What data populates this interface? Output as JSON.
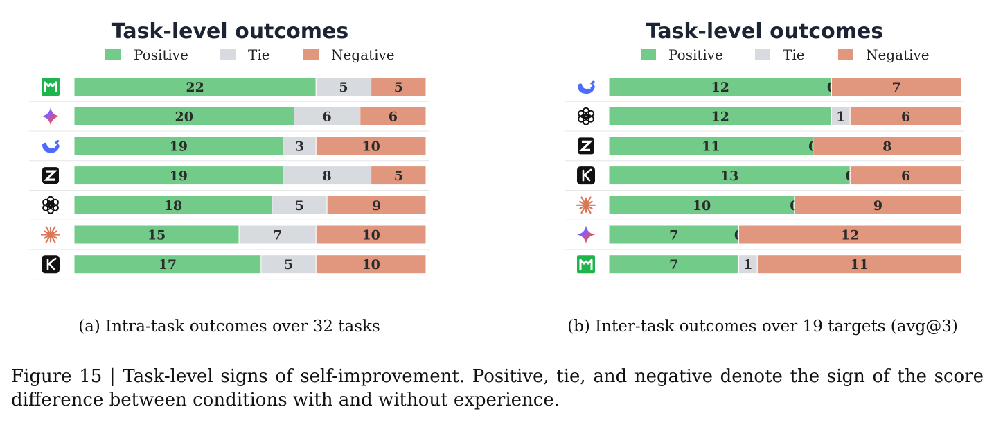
{
  "figure": {
    "caption_label": "Figure 15",
    "caption_sep": "|",
    "caption_text": "Task-level signs of self-improvement. Positive, tie, and negative denote the sign of the score difference between conditions with and without experience."
  },
  "colors": {
    "positive": "#72cb88",
    "tie": "#d7dbe0",
    "negative": "#e0977e"
  },
  "chart_data": [
    {
      "type": "bar",
      "stacked": true,
      "orientation": "horizontal",
      "title": "Task-level outcomes",
      "subcaption": "(a) Intra-task outcomes over 32 tasks",
      "legend": {
        "placement": "top",
        "labels": [
          "Positive",
          "Tie",
          "Negative"
        ]
      },
      "categories": [
        "m-logo-icon",
        "gemini-star-icon",
        "whale-icon",
        "z-logo-icon",
        "openai-knot-icon",
        "claude-spark-icon",
        "k-logo-icon"
      ],
      "series": [
        {
          "name": "Positive",
          "values": [
            22,
            20,
            19,
            19,
            18,
            15,
            17
          ]
        },
        {
          "name": "Tie",
          "values": [
            5,
            6,
            3,
            8,
            5,
            7,
            5
          ]
        },
        {
          "name": "Negative",
          "values": [
            5,
            6,
            10,
            5,
            9,
            10,
            10
          ]
        }
      ],
      "total": 32,
      "grid": false
    },
    {
      "type": "bar",
      "stacked": true,
      "orientation": "horizontal",
      "title": "Task-level outcomes",
      "subcaption": "(b) Inter-task outcomes over 19 targets (avg@3)",
      "legend": {
        "placement": "top",
        "labels": [
          "Positive",
          "Tie",
          "Negative"
        ]
      },
      "categories": [
        "whale-icon",
        "openai-knot-icon",
        "z-logo-icon",
        "k-logo-icon",
        "claude-spark-icon",
        "gemini-star-icon",
        "m-logo-icon"
      ],
      "series": [
        {
          "name": "Positive",
          "values": [
            12,
            12,
            11,
            13,
            10,
            7,
            7
          ]
        },
        {
          "name": "Tie",
          "values": [
            0,
            1,
            0,
            0,
            0,
            0,
            1
          ]
        },
        {
          "name": "Negative",
          "values": [
            7,
            6,
            8,
            6,
            9,
            12,
            11
          ]
        }
      ],
      "total": 19,
      "grid": false
    }
  ]
}
